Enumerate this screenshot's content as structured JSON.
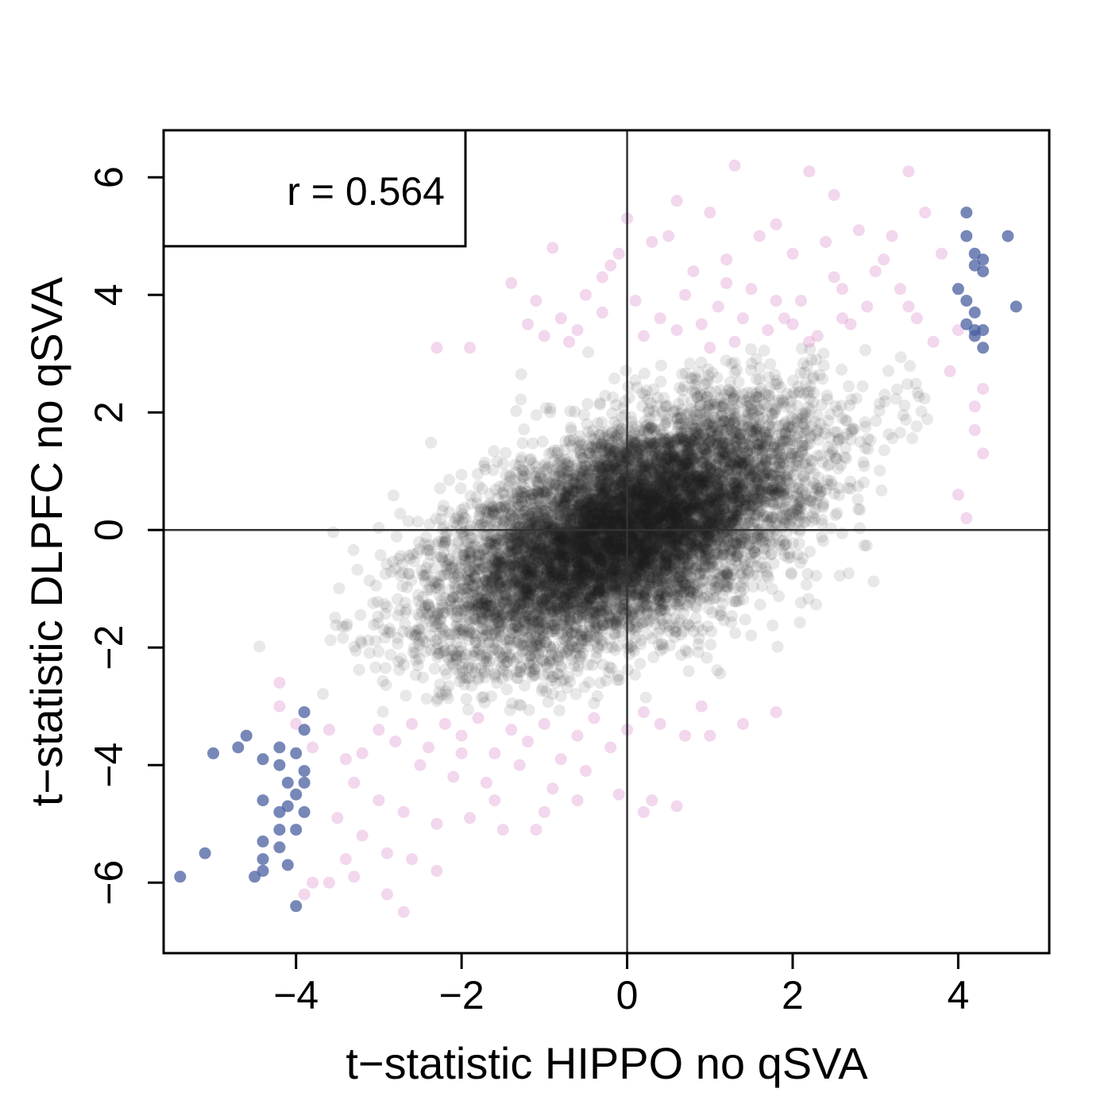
{
  "chart_data": {
    "type": "scatter",
    "title": "",
    "xlabel": "t−statistic HIPPO no qSVA",
    "ylabel": "t−statistic DLPFC no qSVA",
    "xlim": [
      -5.6,
      5.1
    ],
    "ylim": [
      -7.2,
      6.8
    ],
    "xticks": [
      -4,
      -2,
      0,
      2,
      4
    ],
    "yticks": [
      -6,
      -4,
      -2,
      0,
      2,
      4,
      6
    ],
    "xtick_labels": [
      "−4",
      "−2",
      "0",
      "2",
      "4"
    ],
    "ytick_labels": [
      "−6",
      "−4",
      "−2",
      "0",
      "2",
      "4",
      "6"
    ],
    "reference_lines": {
      "x": 0,
      "y": 0
    },
    "annotation": "r = 0.564",
    "grid": false,
    "legend": "none",
    "colors": {
      "background_points": "#1a1a1a",
      "dlpfc_significant": "#d070c0",
      "both_significant": "#4a5fa0",
      "axes": "#000000",
      "reference_line": "#333333"
    },
    "significance_threshold_y": 3.1,
    "series": [
      {
        "group": "background",
        "n": 9000,
        "correlation": 0.564,
        "x_sd": 1.1,
        "y_sd": 1.05,
        "opacity": 0.1,
        "y_range": [
          -3.1,
          3.1
        ]
      },
      {
        "group": "dlpfc_significant",
        "opacity": 0.28,
        "points": [
          [
            -1.2,
            3.5
          ],
          [
            -1.0,
            3.3
          ],
          [
            -0.8,
            3.6
          ],
          [
            -0.6,
            3.4
          ],
          [
            -0.5,
            4.0
          ],
          [
            -0.3,
            3.7
          ],
          [
            -0.2,
            4.5
          ],
          [
            -0.1,
            4.7
          ],
          [
            0.2,
            3.3
          ],
          [
            0.4,
            3.6
          ],
          [
            0.6,
            3.4
          ],
          [
            0.7,
            4.0
          ],
          [
            0.9,
            3.5
          ],
          [
            1.1,
            3.8
          ],
          [
            1.3,
            3.2
          ],
          [
            1.5,
            4.1
          ],
          [
            1.7,
            3.4
          ],
          [
            1.9,
            3.6
          ],
          [
            2.1,
            3.9
          ],
          [
            2.3,
            3.3
          ],
          [
            2.5,
            4.3
          ],
          [
            2.7,
            3.5
          ],
          [
            2.9,
            3.8
          ],
          [
            3.1,
            4.6
          ],
          [
            3.3,
            4.1
          ],
          [
            3.5,
            3.6
          ],
          [
            -1.4,
            4.2
          ],
          [
            -0.9,
            4.8
          ],
          [
            0.3,
            4.9
          ],
          [
            0.8,
            4.4
          ],
          [
            1.2,
            4.6
          ],
          [
            1.6,
            5.0
          ],
          [
            2.0,
            4.7
          ],
          [
            2.4,
            4.9
          ],
          [
            2.8,
            5.1
          ],
          [
            3.2,
            5.0
          ],
          [
            3.6,
            5.4
          ],
          [
            3.0,
            4.4
          ],
          [
            2.2,
            3.2
          ],
          [
            1.0,
            3.1
          ],
          [
            0.0,
            5.3
          ],
          [
            0.6,
            5.6
          ],
          [
            1.3,
            6.2
          ],
          [
            2.2,
            6.1
          ],
          [
            3.4,
            6.1
          ],
          [
            2.5,
            5.7
          ],
          [
            1.8,
            5.2
          ],
          [
            1.0,
            5.4
          ],
          [
            0.5,
            5.0
          ],
          [
            -0.3,
            4.3
          ],
          [
            -2.3,
            3.1
          ],
          [
            -1.9,
            3.1
          ],
          [
            -1.1,
            3.9
          ],
          [
            -0.7,
            3.2
          ],
          [
            3.8,
            4.7
          ],
          [
            4.0,
            3.4
          ],
          [
            3.9,
            2.7
          ],
          [
            4.2,
            2.1
          ],
          [
            4.3,
            2.4
          ],
          [
            4.2,
            1.7
          ],
          [
            4.3,
            1.3
          ],
          [
            4.0,
            0.6
          ],
          [
            4.1,
            0.2
          ],
          [
            3.7,
            3.2
          ],
          [
            3.4,
            3.8
          ],
          [
            2.6,
            4.1
          ],
          [
            1.4,
            3.6
          ],
          [
            0.1,
            3.9
          ],
          [
            1.8,
            3.9
          ],
          [
            2.0,
            3.5
          ],
          [
            2.6,
            3.6
          ],
          [
            1.2,
            4.2
          ],
          [
            -2.2,
            -3.3
          ],
          [
            -2.0,
            -3.5
          ],
          [
            -1.8,
            -3.2
          ],
          [
            -1.6,
            -3.8
          ],
          [
            -1.4,
            -3.4
          ],
          [
            -1.2,
            -3.6
          ],
          [
            -1.0,
            -3.3
          ],
          [
            -0.8,
            -3.9
          ],
          [
            -0.6,
            -3.5
          ],
          [
            -0.4,
            -3.2
          ],
          [
            -0.2,
            -3.7
          ],
          [
            0.0,
            -3.4
          ],
          [
            0.2,
            -3.1
          ],
          [
            0.4,
            -3.3
          ],
          [
            -2.4,
            -3.7
          ],
          [
            -2.6,
            -3.3
          ],
          [
            -2.8,
            -3.6
          ],
          [
            -3.0,
            -3.4
          ],
          [
            -3.2,
            -3.8
          ],
          [
            -2.5,
            -4.0
          ],
          [
            -2.1,
            -4.2
          ],
          [
            -1.7,
            -4.3
          ],
          [
            -1.3,
            -4.0
          ],
          [
            -0.9,
            -4.4
          ],
          [
            -0.5,
            -4.1
          ],
          [
            -0.1,
            -4.5
          ],
          [
            0.3,
            -4.6
          ],
          [
            0.7,
            -3.5
          ],
          [
            -3.3,
            -4.3
          ],
          [
            -3.0,
            -4.6
          ],
          [
            -2.7,
            -4.8
          ],
          [
            -2.3,
            -5.0
          ],
          [
            -1.9,
            -4.9
          ],
          [
            -1.5,
            -5.1
          ],
          [
            -1.1,
            -5.1
          ],
          [
            -3.5,
            -4.9
          ],
          [
            -3.2,
            -5.2
          ],
          [
            -2.9,
            -5.5
          ],
          [
            -2.6,
            -5.6
          ],
          [
            -2.3,
            -5.8
          ],
          [
            -3.4,
            -5.6
          ],
          [
            -3.3,
            -5.9
          ],
          [
            -2.9,
            -6.2
          ],
          [
            -2.7,
            -6.5
          ],
          [
            -3.6,
            -6.0
          ],
          [
            -3.8,
            -6.0
          ],
          [
            -3.9,
            -6.2
          ],
          [
            -4.2,
            -3.0
          ],
          [
            -4.0,
            -3.3
          ],
          [
            -3.8,
            -3.7
          ],
          [
            -3.6,
            -3.4
          ],
          [
            -3.4,
            -3.9
          ],
          [
            -4.2,
            -2.6
          ],
          [
            1.0,
            -3.5
          ],
          [
            1.4,
            -3.3
          ],
          [
            1.8,
            -3.1
          ],
          [
            0.6,
            -4.7
          ],
          [
            0.2,
            -4.8
          ],
          [
            -0.6,
            -4.6
          ],
          [
            -1.6,
            -4.6
          ],
          [
            -2.0,
            -3.8
          ],
          [
            -1.0,
            -4.8
          ],
          [
            0.9,
            -3.0
          ]
        ]
      },
      {
        "group": "both_significant",
        "opacity": 0.75,
        "points": [
          [
            4.1,
            5.4
          ],
          [
            4.1,
            5.0
          ],
          [
            4.2,
            4.7
          ],
          [
            4.3,
            4.6
          ],
          [
            4.6,
            5.0
          ],
          [
            4.2,
            4.5
          ],
          [
            4.3,
            4.4
          ],
          [
            4.0,
            4.1
          ],
          [
            4.1,
            3.9
          ],
          [
            4.7,
            3.8
          ],
          [
            4.2,
            3.7
          ],
          [
            4.1,
            3.5
          ],
          [
            4.2,
            3.4
          ],
          [
            4.3,
            3.4
          ],
          [
            4.2,
            3.3
          ],
          [
            4.3,
            3.1
          ],
          [
            -3.9,
            -3.1
          ],
          [
            -3.9,
            -3.4
          ],
          [
            -4.6,
            -3.5
          ],
          [
            -4.7,
            -3.7
          ],
          [
            -4.2,
            -3.7
          ],
          [
            -4.0,
            -3.8
          ],
          [
            -5.0,
            -3.8
          ],
          [
            -4.4,
            -3.9
          ],
          [
            -4.2,
            -4.0
          ],
          [
            -3.9,
            -4.1
          ],
          [
            -4.1,
            -4.3
          ],
          [
            -3.9,
            -4.3
          ],
          [
            -4.0,
            -4.5
          ],
          [
            -4.4,
            -4.6
          ],
          [
            -4.1,
            -4.7
          ],
          [
            -3.9,
            -4.8
          ],
          [
            -4.2,
            -4.8
          ],
          [
            -4.2,
            -5.1
          ],
          [
            -4.0,
            -5.1
          ],
          [
            -4.4,
            -5.3
          ],
          [
            -4.2,
            -5.4
          ],
          [
            -4.4,
            -5.6
          ],
          [
            -5.1,
            -5.5
          ],
          [
            -4.1,
            -5.7
          ],
          [
            -4.4,
            -5.8
          ],
          [
            -4.5,
            -5.9
          ],
          [
            -5.4,
            -5.9
          ],
          [
            -4.0,
            -6.4
          ]
        ]
      }
    ]
  }
}
